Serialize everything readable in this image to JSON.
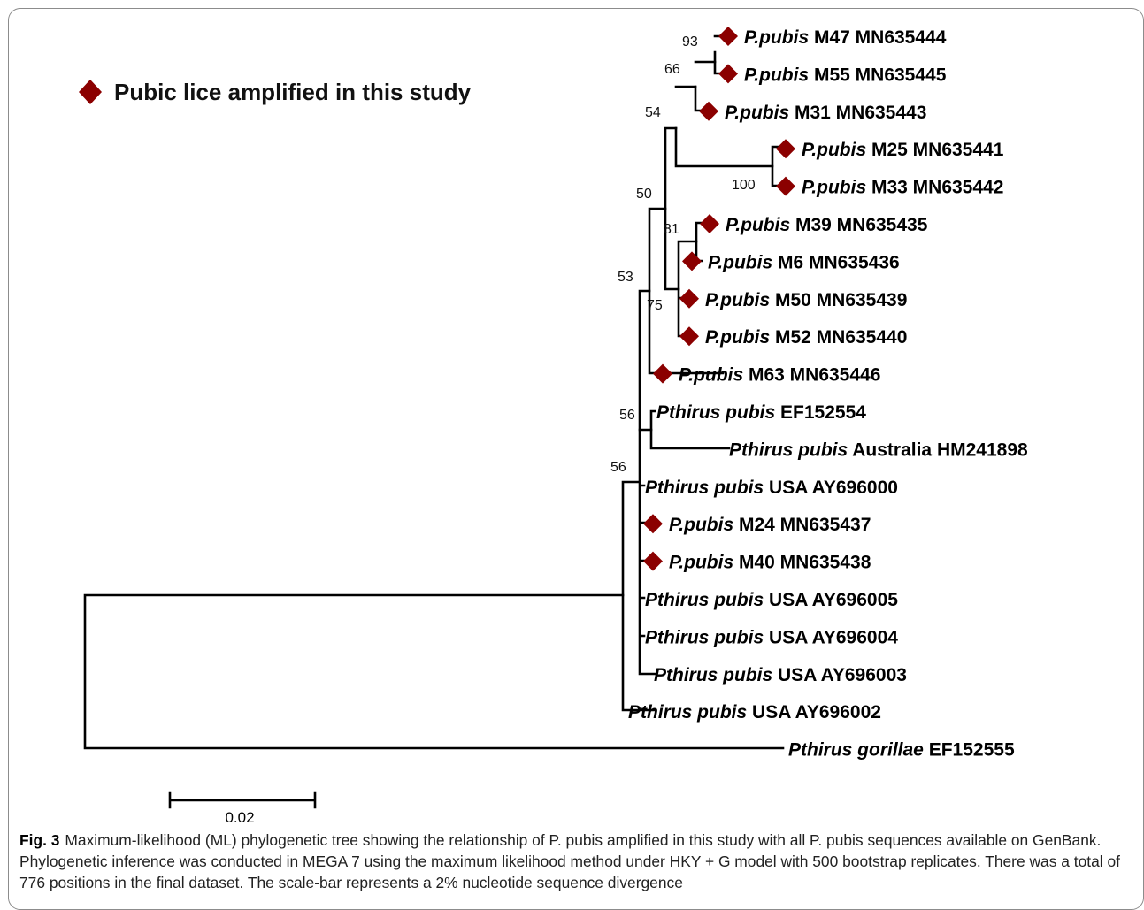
{
  "legend": {
    "label": "Pubic lice amplified in this study",
    "marker_color": "#8b0000"
  },
  "tips": [
    {
      "id": "m47",
      "genus": "P.pubis",
      "rest": " M47 MN635444",
      "marked": true
    },
    {
      "id": "m55",
      "genus": "P.pubis",
      "rest": " M55 MN635445",
      "marked": true
    },
    {
      "id": "m31",
      "genus": "P.pubis",
      "rest": " M31 MN635443",
      "marked": true
    },
    {
      "id": "m25",
      "genus": "P.pubis",
      "rest": " M25 MN635441",
      "marked": true
    },
    {
      "id": "m33",
      "genus": "P.pubis",
      "rest": " M33 MN635442",
      "marked": true
    },
    {
      "id": "m39",
      "genus": "P.pubis",
      "rest": " M39 MN635435",
      "marked": true
    },
    {
      "id": "m6",
      "genus": "P.pubis",
      "rest": " M6 MN635436",
      "marked": true
    },
    {
      "id": "m50",
      "genus": "P.pubis",
      "rest": " M50 MN635439",
      "marked": true
    },
    {
      "id": "m52",
      "genus": "P.pubis",
      "rest": " M52 MN635440",
      "marked": true
    },
    {
      "id": "m63",
      "genus": "P.pubis",
      "rest": " M63 MN635446",
      "marked": true
    },
    {
      "id": "ef152554",
      "genus": "Pthirus pubis",
      "rest": " EF152554",
      "marked": false
    },
    {
      "id": "hm241898",
      "genus": "Pthirus pubis",
      "rest": " Australia HM241898",
      "marked": false
    },
    {
      "id": "ay696000",
      "genus": "Pthirus pubis",
      "rest": " USA AY696000",
      "marked": false
    },
    {
      "id": "m24",
      "genus": "P.pubis",
      "rest": " M24 MN635437",
      "marked": true
    },
    {
      "id": "m40",
      "genus": "P.pubis",
      "rest": " M40 MN635438",
      "marked": true
    },
    {
      "id": "ay696005",
      "genus": "Pthirus pubis",
      "rest": " USA AY696005",
      "marked": false
    },
    {
      "id": "ay696004",
      "genus": "Pthirus pubis",
      "rest": " USA AY696004",
      "marked": false
    },
    {
      "id": "ay696003",
      "genus": "Pthirus pubis",
      "rest": " USA AY696003",
      "marked": false
    },
    {
      "id": "ay696002",
      "genus": "Pthirus pubis",
      "rest": " USA AY696002",
      "marked": false
    },
    {
      "id": "ef152555",
      "genus": "Pthirus gorillae",
      "rest": " EF152555",
      "marked": false
    }
  ],
  "bootstrap": [
    "93",
    "66",
    "54",
    "100",
    "50",
    "81",
    "75",
    "53",
    "56",
    "56"
  ],
  "scale_bar": {
    "label": "0.02"
  },
  "caption": {
    "fig_label": "Fig. 3",
    "text": "Maximum-likelihood (ML) phylogenetic tree showing the relationship of P. pubis amplified in this study with all P. pubis sequences available on GenBank. Phylogenetic inference was conducted in MEGA 7 using the maximum likelihood method under HKY + G model with 500 bootstrap replicates. There was a total of 776 positions in the final dataset. The scale-bar represents a 2% nucleotide sequence divergence"
  }
}
